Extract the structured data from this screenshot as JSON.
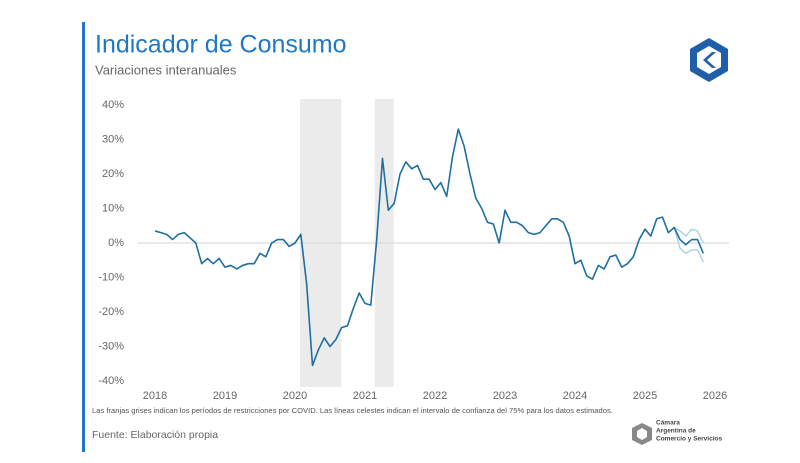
{
  "chart_data": {
    "type": "line",
    "title": "Indicador de Consumo",
    "subtitle": "Variaciones interanuales",
    "note": "Las franjas grises indican los períodos de restricciones por COVID. Las líneas celestes indican el intervalo de confianza del 75% para los datos estimados.",
    "source": "Fuente: Elaboración propia",
    "logo_text": [
      "Cámara",
      "Argentina de",
      "Comercio y Servicios"
    ],
    "xlim": [
      2017.75,
      2026.2
    ],
    "xticks": [
      2018,
      2019,
      2020,
      2021,
      2022,
      2023,
      2024,
      2025,
      2026
    ],
    "ylim": [
      -40,
      40
    ],
    "yticks": [
      {
        "value": 40,
        "label": "40%"
      },
      {
        "value": 30,
        "label": "30%"
      },
      {
        "value": 20,
        "label": "20%"
      },
      {
        "value": 10,
        "label": "10%"
      },
      {
        "value": 0,
        "label": "0%"
      },
      {
        "value": -10,
        "label": "-10%"
      },
      {
        "value": -20,
        "label": "-20%"
      },
      {
        "value": -30,
        "label": "-30%"
      },
      {
        "value": -40,
        "label": "-40%"
      }
    ],
    "shaded_periods": [
      [
        2020.07,
        2020.66
      ],
      [
        2021.14,
        2021.41
      ]
    ],
    "shade_color": "#ebebeb",
    "x": [
      2018,
      2018.083,
      2018.167,
      2018.25,
      2018.333,
      2018.417,
      2018.5,
      2018.583,
      2018.667,
      2018.75,
      2018.833,
      2018.917,
      2019,
      2019.083,
      2019.167,
      2019.25,
      2019.333,
      2019.417,
      2019.5,
      2019.583,
      2019.667,
      2019.75,
      2019.833,
      2019.917,
      2020,
      2020.083,
      2020.167,
      2020.25,
      2020.333,
      2020.417,
      2020.5,
      2020.583,
      2020.667,
      2020.75,
      2020.833,
      2020.917,
      2021,
      2021.083,
      2021.167,
      2021.25,
      2021.333,
      2021.417,
      2021.5,
      2021.583,
      2021.667,
      2021.75,
      2021.833,
      2021.917,
      2022,
      2022.083,
      2022.167,
      2022.25,
      2022.333,
      2022.417,
      2022.5,
      2022.583,
      2022.667,
      2022.75,
      2022.833,
      2022.917,
      2023,
      2023.083,
      2023.167,
      2023.25,
      2023.333,
      2023.417,
      2023.5,
      2023.583,
      2023.667,
      2023.75,
      2023.833,
      2023.917,
      2024,
      2024.083,
      2024.167,
      2024.25,
      2024.333,
      2024.417,
      2024.5,
      2024.583,
      2024.667,
      2024.75,
      2024.833,
      2024.917,
      2025,
      2025.083,
      2025.167,
      2025.25,
      2025.333,
      2025.417,
      2025.5,
      2025.583,
      2025.667,
      2025.75,
      2025.833
    ],
    "series": [
      {
        "color": "#1f6fa0",
        "values": [
          3.5,
          3,
          2.5,
          1,
          2.5,
          3,
          1.5,
          0,
          -6,
          -4.5,
          -6,
          -4.5,
          -7,
          -6.5,
          -7.5,
          -6.5,
          -6,
          -6,
          -3,
          -4,
          0,
          1,
          1,
          -1,
          0,
          2.5,
          -12,
          -35.5,
          -31,
          -27.5,
          -30,
          -28,
          -24.5,
          -24,
          -19,
          -14.5,
          -17.5,
          -18,
          1,
          24.5,
          9.5,
          11.5,
          20,
          23.5,
          21.5,
          22.5,
          18.5,
          18.5,
          15.5,
          17.5,
          13.5,
          25,
          33,
          28,
          20,
          13,
          10,
          6,
          5.5,
          0,
          9.5,
          6,
          6,
          5,
          3,
          2.5,
          3,
          5,
          7,
          7,
          6,
          2,
          -6,
          -5,
          -9.5,
          -10.5,
          -6.5,
          -7.5,
          -4,
          -3.5,
          -7,
          -6,
          -4,
          1,
          4,
          2,
          7,
          7.5,
          3,
          4.5,
          1,
          -0.5,
          1,
          1,
          -3
        ]
      },
      {
        "color": "#a9d0e6",
        "x": [
          2025.417,
          2025.5,
          2025.583,
          2025.667,
          2025.75,
          2025.833
        ],
        "values": [
          4.5,
          3.5,
          2,
          4,
          3.5,
          0
        ]
      },
      {
        "color": "#a9d0e6",
        "x": [
          2025.417,
          2025.5,
          2025.583,
          2025.667,
          2025.75,
          2025.833
        ],
        "values": [
          4.5,
          -1.5,
          -3,
          -2,
          -2,
          -5.5
        ]
      }
    ]
  }
}
